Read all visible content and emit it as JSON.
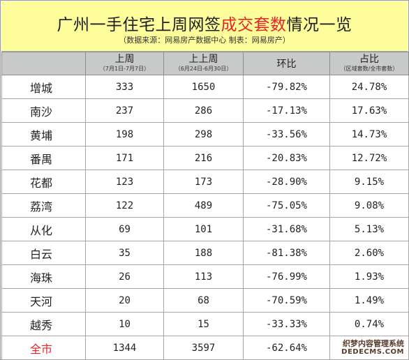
{
  "title": {
    "prefix": "广州一手住宅上周网签",
    "highlight": "成交套数",
    "suffix": "情况一览",
    "highlight_color": "#e8232a"
  },
  "subtitle": "（数据来源：网易房产数据中心  制表：网易房产）",
  "columns": [
    {
      "main": "",
      "sub": ""
    },
    {
      "main": "上周",
      "sub": "（7月1日-7月7日）"
    },
    {
      "main": "上上周",
      "sub": "（6月24日-6月30日）"
    },
    {
      "main": "环比",
      "sub": ""
    },
    {
      "main": "占比",
      "sub": "（区域套数/全市套数）"
    }
  ],
  "rows": [
    {
      "district": "增城",
      "last_week": "333",
      "prev_week": "1650",
      "change": "-79.82%",
      "share": "24.78%"
    },
    {
      "district": "南沙",
      "last_week": "237",
      "prev_week": "286",
      "change": "-17.13%",
      "share": "17.63%"
    },
    {
      "district": "黄埔",
      "last_week": "198",
      "prev_week": "298",
      "change": "-33.56%",
      "share": "14.73%"
    },
    {
      "district": "番禺",
      "last_week": "171",
      "prev_week": "216",
      "change": "-20.83%",
      "share": "12.72%"
    },
    {
      "district": "花都",
      "last_week": "123",
      "prev_week": "173",
      "change": "-28.90%",
      "share": "9.15%"
    },
    {
      "district": "荔湾",
      "last_week": "122",
      "prev_week": "489",
      "change": "-75.05%",
      "share": "9.08%"
    },
    {
      "district": "从化",
      "last_week": "69",
      "prev_week": "101",
      "change": "-31.68%",
      "share": "5.13%"
    },
    {
      "district": "白云",
      "last_week": "35",
      "prev_week": "188",
      "change": "-81.38%",
      "share": "2.60%"
    },
    {
      "district": "海珠",
      "last_week": "26",
      "prev_week": "113",
      "change": "-76.99%",
      "share": "1.93%"
    },
    {
      "district": "天河",
      "last_week": "20",
      "prev_week": "68",
      "change": "-70.59%",
      "share": "1.49%"
    },
    {
      "district": "越秀",
      "last_week": "10",
      "prev_week": "15",
      "change": "-33.33%",
      "share": "0.74%"
    }
  ],
  "total": {
    "district": "全市",
    "last_week": "1344",
    "prev_week": "3597",
    "change": "-62.64%",
    "share": ""
  },
  "watermark": {
    "line1": "织梦内容管理系统",
    "line2": "DEDECMS.COM"
  },
  "colors": {
    "header_bg": "#c8c9c9",
    "title_bg": "#fdfd9c",
    "total_label": "#e8232a"
  }
}
